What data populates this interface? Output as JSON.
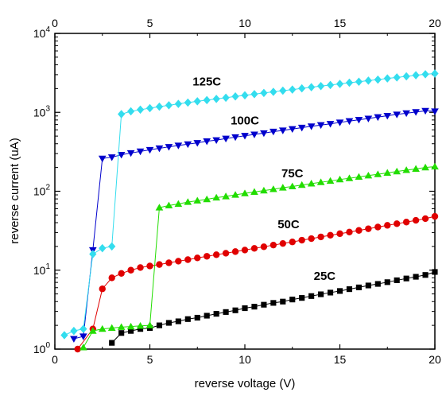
{
  "chart_data": {
    "type": "scatter",
    "xlabel": "reverse voltage (V)",
    "ylabel": "reverse current (uA)",
    "xlim": [
      0,
      20
    ],
    "ylim": [
      1,
      10000
    ],
    "y_scale": "log",
    "x_ticks": [
      0,
      5,
      10,
      15,
      20
    ],
    "top_x_ticks": [
      0,
      5,
      10,
      15,
      20
    ],
    "y_ticks": [
      {
        "base": "10",
        "exp": "0",
        "value": 1
      },
      {
        "base": "10",
        "exp": "1",
        "value": 10
      },
      {
        "base": "10",
        "exp": "2",
        "value": 100
      },
      {
        "base": "10",
        "exp": "3",
        "value": 1000
      },
      {
        "base": "10",
        "exp": "4",
        "value": 10000
      }
    ],
    "grid": false,
    "colors": {
      "25C": "#000000",
      "50C": "#e00000",
      "75C": "#22dd00",
      "100C": "#0000cc",
      "125C": "#33ddee"
    },
    "series": [
      {
        "name": "25C",
        "marker": "square",
        "color": "#000000",
        "points": [
          [
            3,
            1.2
          ],
          [
            3.5,
            1.6
          ],
          [
            4,
            1.7
          ],
          [
            4.5,
            1.8
          ],
          [
            5,
            1.85
          ],
          [
            5.5,
            2.0
          ],
          [
            6,
            2.15
          ],
          [
            6.5,
            2.25
          ],
          [
            7,
            2.4
          ],
          [
            7.5,
            2.5
          ],
          [
            8,
            2.65
          ],
          [
            8.5,
            2.8
          ],
          [
            9,
            2.95
          ],
          [
            9.5,
            3.1
          ],
          [
            10,
            3.3
          ],
          [
            10.5,
            3.45
          ],
          [
            11,
            3.65
          ],
          [
            11.5,
            3.85
          ],
          [
            12,
            4.0
          ],
          [
            12.5,
            4.25
          ],
          [
            13,
            4.45
          ],
          [
            13.5,
            4.7
          ],
          [
            14,
            4.95
          ],
          [
            14.5,
            5.2
          ],
          [
            15,
            5.45
          ],
          [
            15.5,
            5.75
          ],
          [
            16,
            6.05
          ],
          [
            16.5,
            6.4
          ],
          [
            17,
            6.7
          ],
          [
            17.5,
            7.05
          ],
          [
            18,
            7.45
          ],
          [
            18.5,
            7.85
          ],
          [
            19,
            8.25
          ],
          [
            19.5,
            8.7
          ],
          [
            20,
            9.5
          ]
        ]
      },
      {
        "name": "50C",
        "marker": "circle",
        "color": "#e00000",
        "points": [
          [
            1.2,
            1.0
          ],
          [
            2,
            1.8
          ],
          [
            2.5,
            5.8
          ],
          [
            3,
            8.0
          ],
          [
            3.5,
            9.1
          ],
          [
            4,
            10.0
          ],
          [
            4.5,
            10.8
          ],
          [
            5,
            11.3
          ],
          [
            5.5,
            11.8
          ],
          [
            6,
            12.4
          ],
          [
            6.5,
            13.0
          ],
          [
            7,
            13.6
          ],
          [
            7.5,
            14.3
          ],
          [
            8,
            15.0
          ],
          [
            8.5,
            15.7
          ],
          [
            9,
            16.4
          ],
          [
            9.5,
            17.2
          ],
          [
            10,
            18.0
          ],
          [
            10.5,
            18.9
          ],
          [
            11,
            19.8
          ],
          [
            11.5,
            20.8
          ],
          [
            12,
            21.8
          ],
          [
            12.5,
            22.8
          ],
          [
            13,
            24.0
          ],
          [
            13.5,
            25.1
          ],
          [
            14,
            26.4
          ],
          [
            14.5,
            27.7
          ],
          [
            15,
            29.0
          ],
          [
            15.5,
            30.4
          ],
          [
            16,
            31.9
          ],
          [
            16.5,
            33.5
          ],
          [
            17,
            35.2
          ],
          [
            17.5,
            37.0
          ],
          [
            18,
            38.8
          ],
          [
            18.5,
            40.7
          ],
          [
            19,
            42.8
          ],
          [
            19.5,
            45.0
          ],
          [
            20,
            48.0
          ]
        ]
      },
      {
        "name": "75C",
        "marker": "triangle-up",
        "color": "#22dd00",
        "points": [
          [
            1.5,
            1.05
          ],
          [
            2,
            1.7
          ],
          [
            2.5,
            1.8
          ],
          [
            3,
            1.85
          ],
          [
            3.5,
            1.9
          ],
          [
            4,
            1.93
          ],
          [
            4.5,
            1.97
          ],
          [
            5,
            2.0
          ],
          [
            5.5,
            62
          ],
          [
            6,
            66
          ],
          [
            6.5,
            69
          ],
          [
            7,
            73
          ],
          [
            7.5,
            76
          ],
          [
            8,
            79
          ],
          [
            8.5,
            83
          ],
          [
            9,
            86
          ],
          [
            9.5,
            90
          ],
          [
            10,
            94
          ],
          [
            10.5,
            98
          ],
          [
            11,
            102
          ],
          [
            11.5,
            106
          ],
          [
            12,
            111
          ],
          [
            12.5,
            115
          ],
          [
            13,
            120
          ],
          [
            13.5,
            125
          ],
          [
            14,
            130
          ],
          [
            14.5,
            135
          ],
          [
            15,
            141
          ],
          [
            15.5,
            146
          ],
          [
            16,
            152
          ],
          [
            16.5,
            158
          ],
          [
            17,
            164
          ],
          [
            17.5,
            171
          ],
          [
            18,
            178
          ],
          [
            18.5,
            185
          ],
          [
            19,
            192
          ],
          [
            19.5,
            200
          ],
          [
            20,
            205
          ]
        ]
      },
      {
        "name": "100C",
        "marker": "triangle-down",
        "color": "#0000cc",
        "points": [
          [
            1,
            1.35
          ],
          [
            1.5,
            1.45
          ],
          [
            2,
            18
          ],
          [
            2.5,
            260
          ],
          [
            3,
            270
          ],
          [
            3.5,
            290
          ],
          [
            4,
            305
          ],
          [
            4.5,
            320
          ],
          [
            5,
            335
          ],
          [
            5.5,
            350
          ],
          [
            6,
            365
          ],
          [
            6.5,
            380
          ],
          [
            7,
            395
          ],
          [
            7.5,
            410
          ],
          [
            8,
            430
          ],
          [
            8.5,
            445
          ],
          [
            9,
            465
          ],
          [
            9.5,
            485
          ],
          [
            10,
            505
          ],
          [
            10.5,
            525
          ],
          [
            11,
            545
          ],
          [
            11.5,
            570
          ],
          [
            12,
            590
          ],
          [
            12.5,
            615
          ],
          [
            13,
            640
          ],
          [
            13.5,
            665
          ],
          [
            14,
            690
          ],
          [
            14.5,
            715
          ],
          [
            15,
            745
          ],
          [
            15.5,
            775
          ],
          [
            16,
            805
          ],
          [
            16.5,
            835
          ],
          [
            17,
            870
          ],
          [
            17.5,
            905
          ],
          [
            18,
            940
          ],
          [
            18.5,
            975
          ],
          [
            19,
            1010
          ],
          [
            19.5,
            1045
          ],
          [
            20,
            1030
          ]
        ]
      },
      {
        "name": "125C",
        "marker": "diamond",
        "color": "#33ddee",
        "points": [
          [
            0.5,
            1.5
          ],
          [
            1,
            1.7
          ],
          [
            1.5,
            1.8
          ],
          [
            2,
            16
          ],
          [
            2.5,
            19
          ],
          [
            3,
            20
          ],
          [
            3.5,
            950
          ],
          [
            4,
            1030
          ],
          [
            4.5,
            1080
          ],
          [
            5,
            1130
          ],
          [
            5.5,
            1180
          ],
          [
            6,
            1230
          ],
          [
            6.5,
            1280
          ],
          [
            7,
            1330
          ],
          [
            7.5,
            1380
          ],
          [
            8,
            1430
          ],
          [
            8.5,
            1480
          ],
          [
            9,
            1530
          ],
          [
            9.5,
            1590
          ],
          [
            10,
            1640
          ],
          [
            10.5,
            1700
          ],
          [
            11,
            1760
          ],
          [
            11.5,
            1820
          ],
          [
            12,
            1880
          ],
          [
            12.5,
            1940
          ],
          [
            13,
            2010
          ],
          [
            13.5,
            2080
          ],
          [
            14,
            2150
          ],
          [
            14.5,
            2220
          ],
          [
            15,
            2290
          ],
          [
            15.5,
            2370
          ],
          [
            16,
            2440
          ],
          [
            16.5,
            2520
          ],
          [
            17,
            2600
          ],
          [
            17.5,
            2690
          ],
          [
            18,
            2770
          ],
          [
            18.5,
            2860
          ],
          [
            19,
            2950
          ],
          [
            19.5,
            3040
          ],
          [
            20,
            3100
          ]
        ]
      }
    ],
    "annotations": [
      {
        "text": "125C",
        "x": 8,
        "y": 2200
      },
      {
        "text": "100C",
        "x": 10,
        "y": 700
      },
      {
        "text": "75C",
        "x": 12.5,
        "y": 150
      },
      {
        "text": "50C",
        "x": 12.3,
        "y": 34
      },
      {
        "text": "25C",
        "x": 14.2,
        "y": 7.5
      }
    ]
  }
}
